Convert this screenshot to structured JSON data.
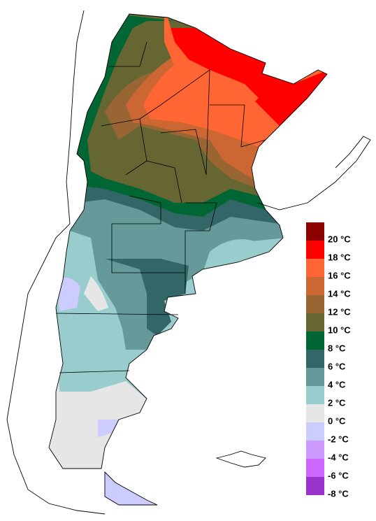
{
  "legend": {
    "items": [
      {
        "label": "20 °C",
        "color": "#8b0000"
      },
      {
        "label": "18 °C",
        "color": "#ff0000"
      },
      {
        "label": "16 °C",
        "color": "#ff6633"
      },
      {
        "label": "14 °C",
        "color": "#cc6633"
      },
      {
        "label": "12 °C",
        "color": "#996633"
      },
      {
        "label": "10 °C",
        "color": "#666633"
      },
      {
        "label": "8 °C",
        "color": "#006633"
      },
      {
        "label": "6 °C",
        "color": "#336666"
      },
      {
        "label": "4 °C",
        "color": "#669999"
      },
      {
        "label": "2 °C",
        "color": "#99cccc"
      },
      {
        "label": "0 °C",
        "color": "#e6e6e6"
      },
      {
        "label": "-2 °C",
        "color": "#ccccff"
      },
      {
        "label": "-4 °C",
        "color": "#cc99ff"
      },
      {
        "label": "-6 °C",
        "color": "#cc66ff"
      },
      {
        "label": "-8 °C",
        "color": "#9933cc"
      }
    ]
  }
}
